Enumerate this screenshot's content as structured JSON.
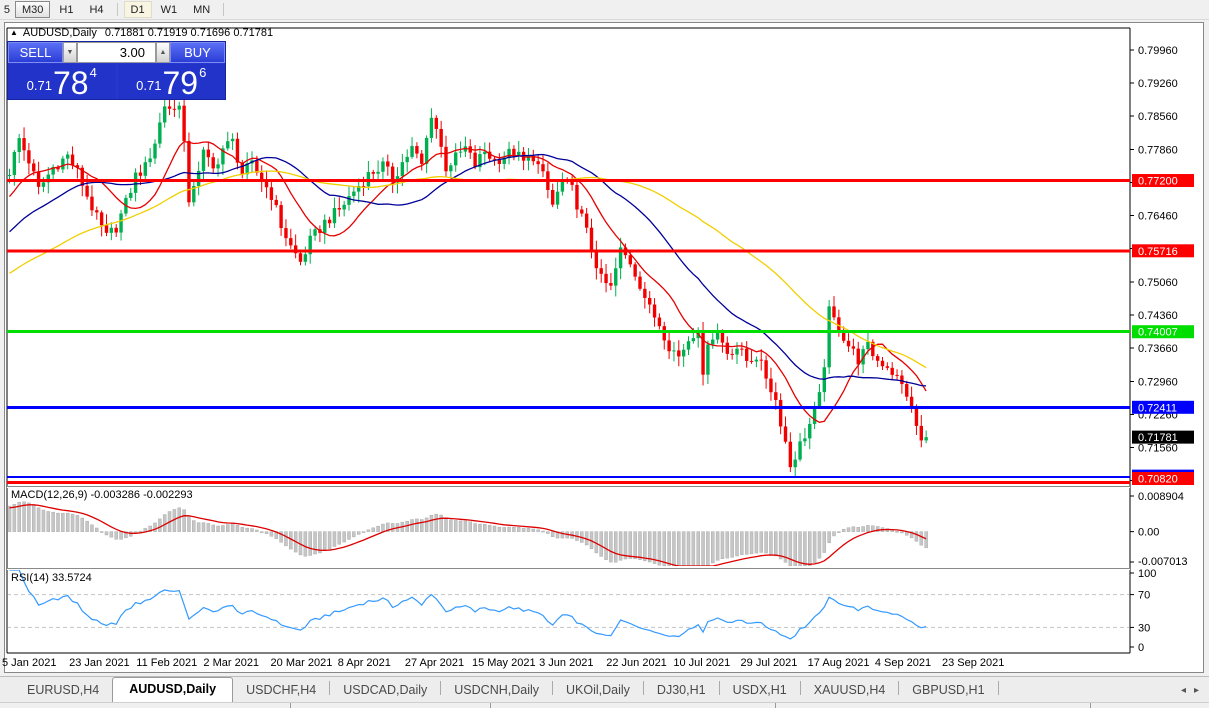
{
  "toolbar": {
    "buttons": [
      {
        "label": "5",
        "state": "cut"
      },
      {
        "label": "M30",
        "state": "pressed"
      },
      {
        "label": "H1",
        "state": "normal"
      },
      {
        "label": "H4",
        "state": "normal"
      },
      {
        "sep": true
      },
      {
        "label": "D1",
        "state": "active"
      },
      {
        "label": "W1",
        "state": "normal"
      },
      {
        "label": "MN",
        "state": "normal"
      },
      {
        "sep": true
      }
    ]
  },
  "chart": {
    "collapse_icon": "▲",
    "symbol_label": "AUDUSD,Daily",
    "ohlc_text": "0.71881 0.71919 0.71696 0.71781"
  },
  "trade_panel": {
    "sell_label": "SELL",
    "buy_label": "BUY",
    "volume": "3.00",
    "spin_down_icon": "▼",
    "spin_up_icon": "▲",
    "sell_price": {
      "prefix": "0.71",
      "big": "78",
      "sup": "4"
    },
    "buy_price": {
      "prefix": "0.71",
      "big": "79",
      "sup": "6"
    }
  },
  "tabs": {
    "items": [
      {
        "label": "EURUSD,H4",
        "active": false
      },
      {
        "label": "AUDUSD,Daily",
        "active": true
      },
      {
        "label": "USDCHF,H4",
        "active": false
      },
      {
        "label": "USDCAD,Daily",
        "active": false
      },
      {
        "label": "USDCNH,Daily",
        "active": false
      },
      {
        "label": "UKOil,Daily",
        "active": false
      },
      {
        "label": "DJ30,H1",
        "active": false
      },
      {
        "label": "USDX,H1",
        "active": false
      },
      {
        "label": "XAUUSD,H4",
        "active": false
      },
      {
        "label": "GBPUSD,H1",
        "active": false
      }
    ],
    "scroll_left": "◂",
    "scroll_right": "▸"
  },
  "chart_data": {
    "type": "candlestick",
    "symbol": "AUDUSD",
    "period": "Daily",
    "ohlc_readout": {
      "open": 0.71881,
      "high": 0.71919,
      "low": 0.71696,
      "close": 0.71781
    },
    "y_axis": {
      "max": 0.804,
      "min": 0.7077,
      "tick_start": 0.7996,
      "tick_step": 0.007,
      "tick_count": 14
    },
    "x_axis": {
      "labels": [
        "5 Jan 2021",
        "23 Jan 2021",
        "11 Feb 2021",
        "2 Mar 2021",
        "20 Mar 2021",
        "8 Apr 2021",
        "27 Apr 2021",
        "15 May 2021",
        "3 Jun 2021",
        "22 Jun 2021",
        "10 Jul 2021",
        "29 Jul 2021",
        "17 Aug 2021",
        "4 Sep 2021",
        "23 Sep 2021"
      ]
    },
    "candle_count": 190,
    "pre_ramp": {
      "from": 0.74,
      "bars": 60
    },
    "wiggle": 0.0013,
    "candle_colors": {
      "up": "#00b050",
      "down": "#f20000"
    },
    "price_path_anchors": [
      [
        0,
        0.774
      ],
      [
        2,
        0.7808
      ],
      [
        4,
        0.7762
      ],
      [
        6,
        0.77
      ],
      [
        9,
        0.7748
      ],
      [
        12,
        0.7772
      ],
      [
        14,
        0.7738
      ],
      [
        16,
        0.7688
      ],
      [
        18,
        0.764
      ],
      [
        20,
        0.76
      ],
      [
        22,
        0.7622
      ],
      [
        24,
        0.7672
      ],
      [
        26,
        0.773
      ],
      [
        28,
        0.7748
      ],
      [
        30,
        0.7802
      ],
      [
        32,
        0.788
      ],
      [
        34,
        0.7868
      ],
      [
        35,
        0.7888
      ],
      [
        36,
        0.78
      ],
      [
        37,
        0.7662
      ],
      [
        38,
        0.7715
      ],
      [
        40,
        0.7778
      ],
      [
        42,
        0.7742
      ],
      [
        44,
        0.7788
      ],
      [
        46,
        0.7802
      ],
      [
        48,
        0.7735
      ],
      [
        50,
        0.7752
      ],
      [
        52,
        0.7722
      ],
      [
        54,
        0.769
      ],
      [
        56,
        0.7625
      ],
      [
        58,
        0.758
      ],
      [
        60,
        0.7548
      ],
      [
        62,
        0.7592
      ],
      [
        65,
        0.7632
      ],
      [
        68,
        0.7658
      ],
      [
        71,
        0.7698
      ],
      [
        74,
        0.7732
      ],
      [
        77,
        0.7752
      ],
      [
        79,
        0.7722
      ],
      [
        81,
        0.7758
      ],
      [
        83,
        0.7788
      ],
      [
        85,
        0.7752
      ],
      [
        87,
        0.7862
      ],
      [
        88,
        0.783
      ],
      [
        90,
        0.7748
      ],
      [
        92,
        0.7768
      ],
      [
        94,
        0.7788
      ],
      [
        96,
        0.7752
      ],
      [
        98,
        0.7782
      ],
      [
        100,
        0.7762
      ],
      [
        102,
        0.7772
      ],
      [
        104,
        0.7782
      ],
      [
        106,
        0.7758
      ],
      [
        108,
        0.7772
      ],
      [
        110,
        0.7728
      ],
      [
        112,
        0.7668
      ],
      [
        114,
        0.7718
      ],
      [
        116,
        0.77
      ],
      [
        118,
        0.7642
      ],
      [
        120,
        0.7578
      ],
      [
        122,
        0.751
      ],
      [
        124,
        0.7492
      ],
      [
        126,
        0.7572
      ],
      [
        128,
        0.7548
      ],
      [
        130,
        0.7502
      ],
      [
        132,
        0.7448
      ],
      [
        134,
        0.7418
      ],
      [
        136,
        0.7372
      ],
      [
        138,
        0.7348
      ],
      [
        140,
        0.7385
      ],
      [
        142,
        0.7412
      ],
      [
        143,
        0.7298
      ],
      [
        144,
        0.7385
      ],
      [
        146,
        0.7398
      ],
      [
        148,
        0.7358
      ],
      [
        150,
        0.7368
      ],
      [
        152,
        0.734
      ],
      [
        154,
        0.735
      ],
      [
        156,
        0.7306
      ],
      [
        158,
        0.7256
      ],
      [
        160,
        0.7168
      ],
      [
        161,
        0.7118
      ],
      [
        163,
        0.7162
      ],
      [
        165,
        0.7205
      ],
      [
        167,
        0.7262
      ],
      [
        168,
        0.7335
      ],
      [
        169,
        0.7442
      ],
      [
        171,
        0.7408
      ],
      [
        173,
        0.7372
      ],
      [
        175,
        0.7342
      ],
      [
        177,
        0.7368
      ],
      [
        179,
        0.734
      ],
      [
        181,
        0.733
      ],
      [
        183,
        0.7302
      ],
      [
        185,
        0.727
      ],
      [
        186,
        0.7235
      ],
      [
        188,
        0.7168
      ],
      [
        189,
        0.7178
      ]
    ],
    "moving_averages": [
      {
        "name": "ma-fast",
        "period": 12,
        "color": "#e60000"
      },
      {
        "name": "ma-mid",
        "period": 30,
        "color": "#000099"
      },
      {
        "name": "ma-slow",
        "period": 60,
        "color": "#f2ce00"
      }
    ],
    "hlines": [
      {
        "price": 0.772,
        "label": "0.77200",
        "color": "#ff0000",
        "width": 3
      },
      {
        "price": 0.75716,
        "label": "0.75716",
        "color": "#ff0000",
        "width": 3
      },
      {
        "price": 0.74007,
        "label": "0.74007",
        "color": "#00dd00",
        "width": 3
      },
      {
        "price": 0.72411,
        "label": "0.72411",
        "color": "#0000ff",
        "width": 3
      },
      {
        "price": 0.70936,
        "label": "0.70936",
        "color": "#0000ff",
        "width": 2
      },
      {
        "price": 0.7082,
        "label": "0.70820",
        "color": "#ff0000",
        "width": 3
      }
    ],
    "current_price": {
      "value": 0.71781,
      "label": "0.71781",
      "bg": "#000000"
    },
    "macd": {
      "label": "MACD(12,26,9) -0.003286 -0.002293",
      "params": "12,26,9",
      "macd_value": -0.003286,
      "signal_value": -0.002293,
      "scale_max": 0.008904,
      "scale_min": -0.007013,
      "scale_labels": [
        "0.008904",
        "0.00",
        "-0.007013"
      ],
      "hist_color": "#c6c6c6",
      "hist_stroke": "#adadad",
      "signal_color": "#dd0000"
    },
    "rsi": {
      "label": "RSI(14) 33.5724",
      "period": 14,
      "value": 33.5724,
      "levels": [
        100,
        70,
        30,
        0
      ],
      "line_color": "#3399ff",
      "level_dash_color": "#c4c4c4"
    }
  }
}
